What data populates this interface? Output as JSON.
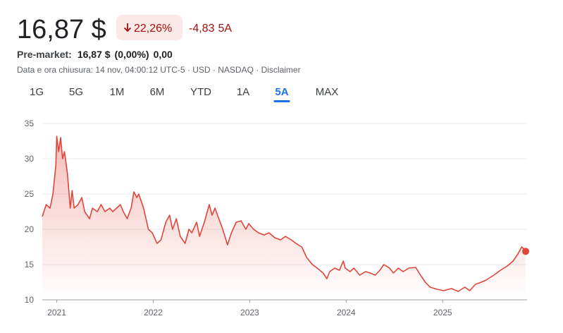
{
  "header": {
    "price": "16,87 $",
    "change_pct": "22,26%",
    "change_abs": "-4,83",
    "period": "5A",
    "pre_market": {
      "label": "Pre-market:",
      "price": "16,87 $",
      "pct": "(0,00%)",
      "change": "0,00"
    },
    "info": "Data e ora chiusura: 14 nov, 04:00:12 UTC-5 · USD · NASDAQ · Disclaimer"
  },
  "tabs": [
    {
      "label": "1G",
      "active": false
    },
    {
      "label": "5G",
      "active": false
    },
    {
      "label": "1M",
      "active": false
    },
    {
      "label": "6M",
      "active": false
    },
    {
      "label": "YTD",
      "active": false
    },
    {
      "label": "1A",
      "active": false
    },
    {
      "label": "5A",
      "active": true
    },
    {
      "label": "MAX",
      "active": false
    }
  ],
  "chart_data": {
    "type": "line",
    "color": "#e0453a",
    "grid": true,
    "x": [
      2020.85,
      2020.89,
      2020.93,
      2020.96,
      2020.99,
      2021.0,
      2021.02,
      2021.04,
      2021.06,
      2021.08,
      2021.11,
      2021.14,
      2021.16,
      2021.18,
      2021.22,
      2021.26,
      2021.29,
      2021.34,
      2021.37,
      2021.42,
      2021.46,
      2021.5,
      2021.55,
      2021.58,
      2021.62,
      2021.66,
      2021.69,
      2021.73,
      2021.77,
      2021.8,
      2021.83,
      2021.85,
      2021.9,
      2021.95,
      2021.99,
      2022.04,
      2022.08,
      2022.13,
      2022.17,
      2022.2,
      2022.24,
      2022.28,
      2022.33,
      2022.37,
      2022.4,
      2022.45,
      2022.48,
      2022.53,
      2022.58,
      2022.61,
      2022.64,
      2022.68,
      2022.72,
      2022.77,
      2022.81,
      2022.86,
      2022.91,
      2022.96,
      2022.99,
      2023.04,
      2023.09,
      2023.15,
      2023.2,
      2023.26,
      2023.32,
      2023.37,
      2023.43,
      2023.48,
      2023.54,
      2023.59,
      2023.65,
      2023.7,
      2023.76,
      2023.8,
      2023.83,
      2023.88,
      2023.93,
      2023.97,
      2023.99,
      2024.04,
      2024.08,
      2024.14,
      2024.2,
      2024.25,
      2024.3,
      2024.35,
      2024.39,
      2024.45,
      2024.49,
      2024.54,
      2024.59,
      2024.65,
      2024.72,
      2024.77,
      2024.82,
      2024.87,
      2024.94,
      2025.01,
      2025.09,
      2025.16,
      2025.23,
      2025.28,
      2025.34,
      2025.4,
      2025.45,
      2025.53,
      2025.6,
      2025.67,
      2025.73,
      2025.78,
      2025.82,
      2025.86
    ],
    "values": [
      21.8,
      23.5,
      23,
      25,
      29,
      33.2,
      31,
      33,
      30,
      31,
      28,
      23,
      25.5,
      23,
      23.5,
      24.5,
      22.5,
      21.5,
      23,
      22.5,
      23.5,
      22.5,
      23,
      22.5,
      23,
      23.5,
      22.5,
      21.5,
      23,
      25.3,
      24.5,
      25,
      23,
      20,
      19.5,
      18,
      18.5,
      21,
      22,
      20,
      21.5,
      19,
      18,
      20,
      19.5,
      21,
      19,
      21,
      23.5,
      22,
      23,
      21.5,
      20,
      17.8,
      19.5,
      21,
      21.2,
      20,
      20.8,
      20,
      19.5,
      19.2,
      19.5,
      18.8,
      18.5,
      19,
      18.5,
      18,
      17.5,
      16,
      15,
      14.5,
      13.8,
      13,
      14,
      14.5,
      14.2,
      15.5,
      14.5,
      14,
      14.5,
      13.5,
      14,
      13.8,
      13.5,
      14.2,
      15,
      14.5,
      13.8,
      14.5,
      14,
      14.5,
      14.6,
      13.5,
      12.5,
      11.8,
      11.5,
      11.3,
      11.6,
      11.2,
      11.8,
      11.3,
      12.2,
      12.5,
      12.8,
      13.5,
      14.2,
      14.8,
      15.5,
      16.5,
      17.5,
      16.87
    ],
    "xlim": [
      2020.85,
      2025.86
    ],
    "xticks": [
      2021,
      2022,
      2023,
      2024,
      2025
    ],
    "ylim": [
      10,
      35
    ],
    "yticks": [
      10,
      15,
      20,
      25,
      30,
      35
    ]
  }
}
